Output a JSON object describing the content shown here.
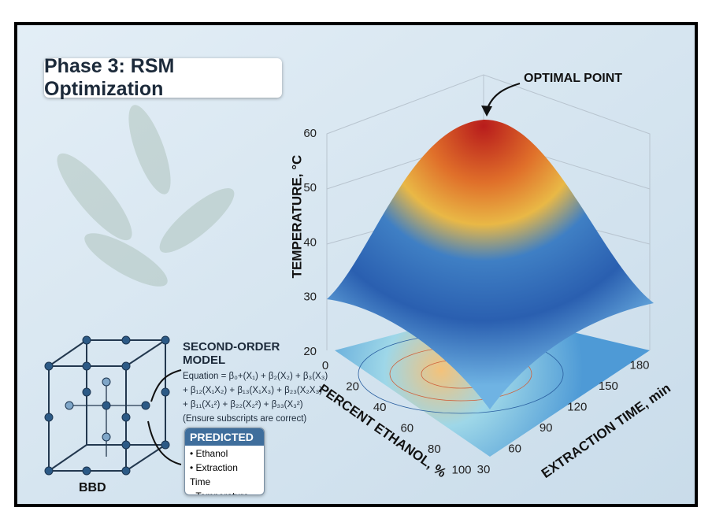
{
  "header": {
    "title": "Phase 3: RSM Optimization"
  },
  "surface_plot": {
    "annotation": "OPTIMAL POINT",
    "z_label": "TEMPERATURE, °C",
    "x_label": "PERCENT ETHANOL, %",
    "y_label": "EXTRACTION TIME, min",
    "z_ticks": [
      20,
      30,
      40,
      50,
      60
    ],
    "x_ticks": [
      0,
      20,
      40,
      60,
      80,
      100
    ],
    "y_ticks": [
      30,
      60,
      90,
      120,
      150,
      180
    ]
  },
  "model": {
    "title": "SECOND-ORDER MODEL",
    "lines": [
      "Equation = β₀+(X₁) + β₂(X₂) + β₃(X₃)",
      "+ β₁₂(X₁X₂) + β₁₃(X₁X₃) + β₂₃(X₂X₃)",
      "+ β₁₁(X₁²) + β₂₂(X₂²) + β₃₃(X₃²)",
      "(Ensure subscripts are correct)"
    ]
  },
  "predicted": {
    "title": "PREDICTED",
    "items": [
      "• Ethanol",
      "• Extraction Time",
      "• Temperature"
    ]
  },
  "design": {
    "label": "BBD"
  }
}
